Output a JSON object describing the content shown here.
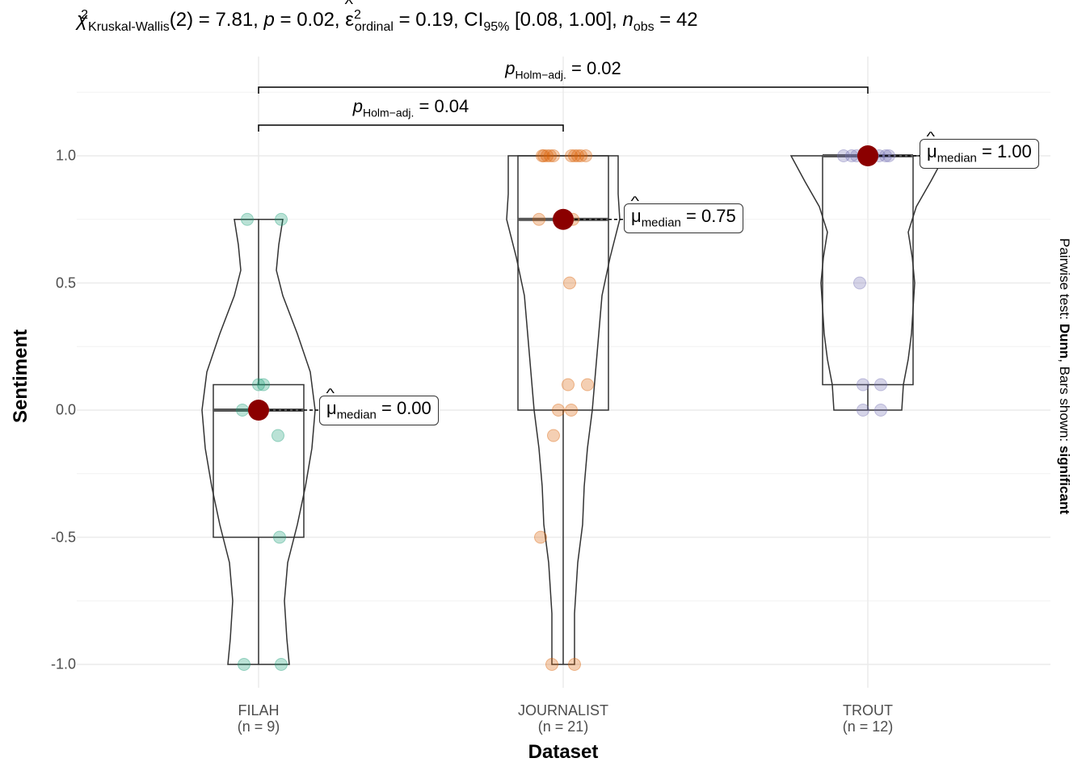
{
  "title": {
    "chi": "χ",
    "chi_sup": "2",
    "chi_sub": "Kruskal-Wallis",
    "df": "(2) = 7.81, ",
    "p_sym": "p",
    "p_val": " = 0.02, ",
    "eps": "ε",
    "eps_sup": "2",
    "eps_sub": "ordinal",
    "eps_val": " = 0.19, CI",
    "ci_sub": "95%",
    "ci_val": " [0.08, 1.00], ",
    "n_sym": "n",
    "n_sub": "obs",
    "n_val": " = 42"
  },
  "side_label": {
    "prefix": "Pairwise test: ",
    "test": "Dunn",
    "middle": ", Bars shown: ",
    "bars": "significant"
  },
  "xlabel": "Dataset",
  "ylabel": "Sentiment",
  "colors": {
    "FILAH": "#1b9e77",
    "JOURNALIST": "#d95f02",
    "TROUT": "#7570b3",
    "median_point": "#8b0000",
    "grid": "#ebebeb"
  },
  "chart_data": {
    "type": "violin-box-scatter",
    "ylim": [
      -1.0,
      1.25
    ],
    "yticks": [
      "1.0",
      "0.5",
      "0.0",
      "-0.5",
      "-1.0"
    ],
    "ytick_values": [
      1.0,
      0.5,
      0.0,
      -0.5,
      -1.0
    ],
    "grid": true,
    "categories": [
      {
        "name": "FILAH",
        "n_label": "(n = 9)",
        "median": 0.0,
        "median_label": "= 0.00",
        "q1": -0.5,
        "q3": 0.1,
        "min": -1.0,
        "max": 0.75,
        "points": [
          -1.0,
          -1.0,
          -0.5,
          -0.1,
          0.0,
          0.1,
          0.1,
          0.75,
          0.75
        ]
      },
      {
        "name": "JOURNALIST",
        "n_label": "(n = 21)",
        "median": 0.75,
        "median_label": "= 0.75",
        "q1": 0.0,
        "q3": 1.0,
        "min": -1.0,
        "max": 1.0,
        "points": [
          -1.0,
          -1.0,
          -0.5,
          -0.1,
          0.0,
          0.0,
          0.1,
          0.1,
          0.5,
          0.75,
          0.75,
          1.0,
          1.0,
          1.0,
          1.0,
          1.0,
          1.0,
          1.0,
          1.0,
          1.0,
          1.0
        ]
      },
      {
        "name": "TROUT",
        "n_label": "(n = 12)",
        "median": 1.0,
        "median_label": "= 1.00",
        "q1": 0.1,
        "q3": 1.0,
        "min": 0.0,
        "max": 1.0,
        "points": [
          0.0,
          0.0,
          0.1,
          0.1,
          0.5,
          1.0,
          1.0,
          1.0,
          1.0,
          1.0,
          1.0,
          1.0
        ]
      }
    ],
    "median_symbol": "μ",
    "median_sub": "median",
    "pairwise": [
      {
        "from": "FILAH",
        "to": "JOURNALIST",
        "p_sym": "p",
        "p_sub": "Holm−adj.",
        "p_val": " = 0.04"
      },
      {
        "from": "FILAH",
        "to": "TROUT",
        "p_sym": "p",
        "p_sub": "Holm−adj.",
        "p_val": " = 0.02"
      }
    ]
  }
}
